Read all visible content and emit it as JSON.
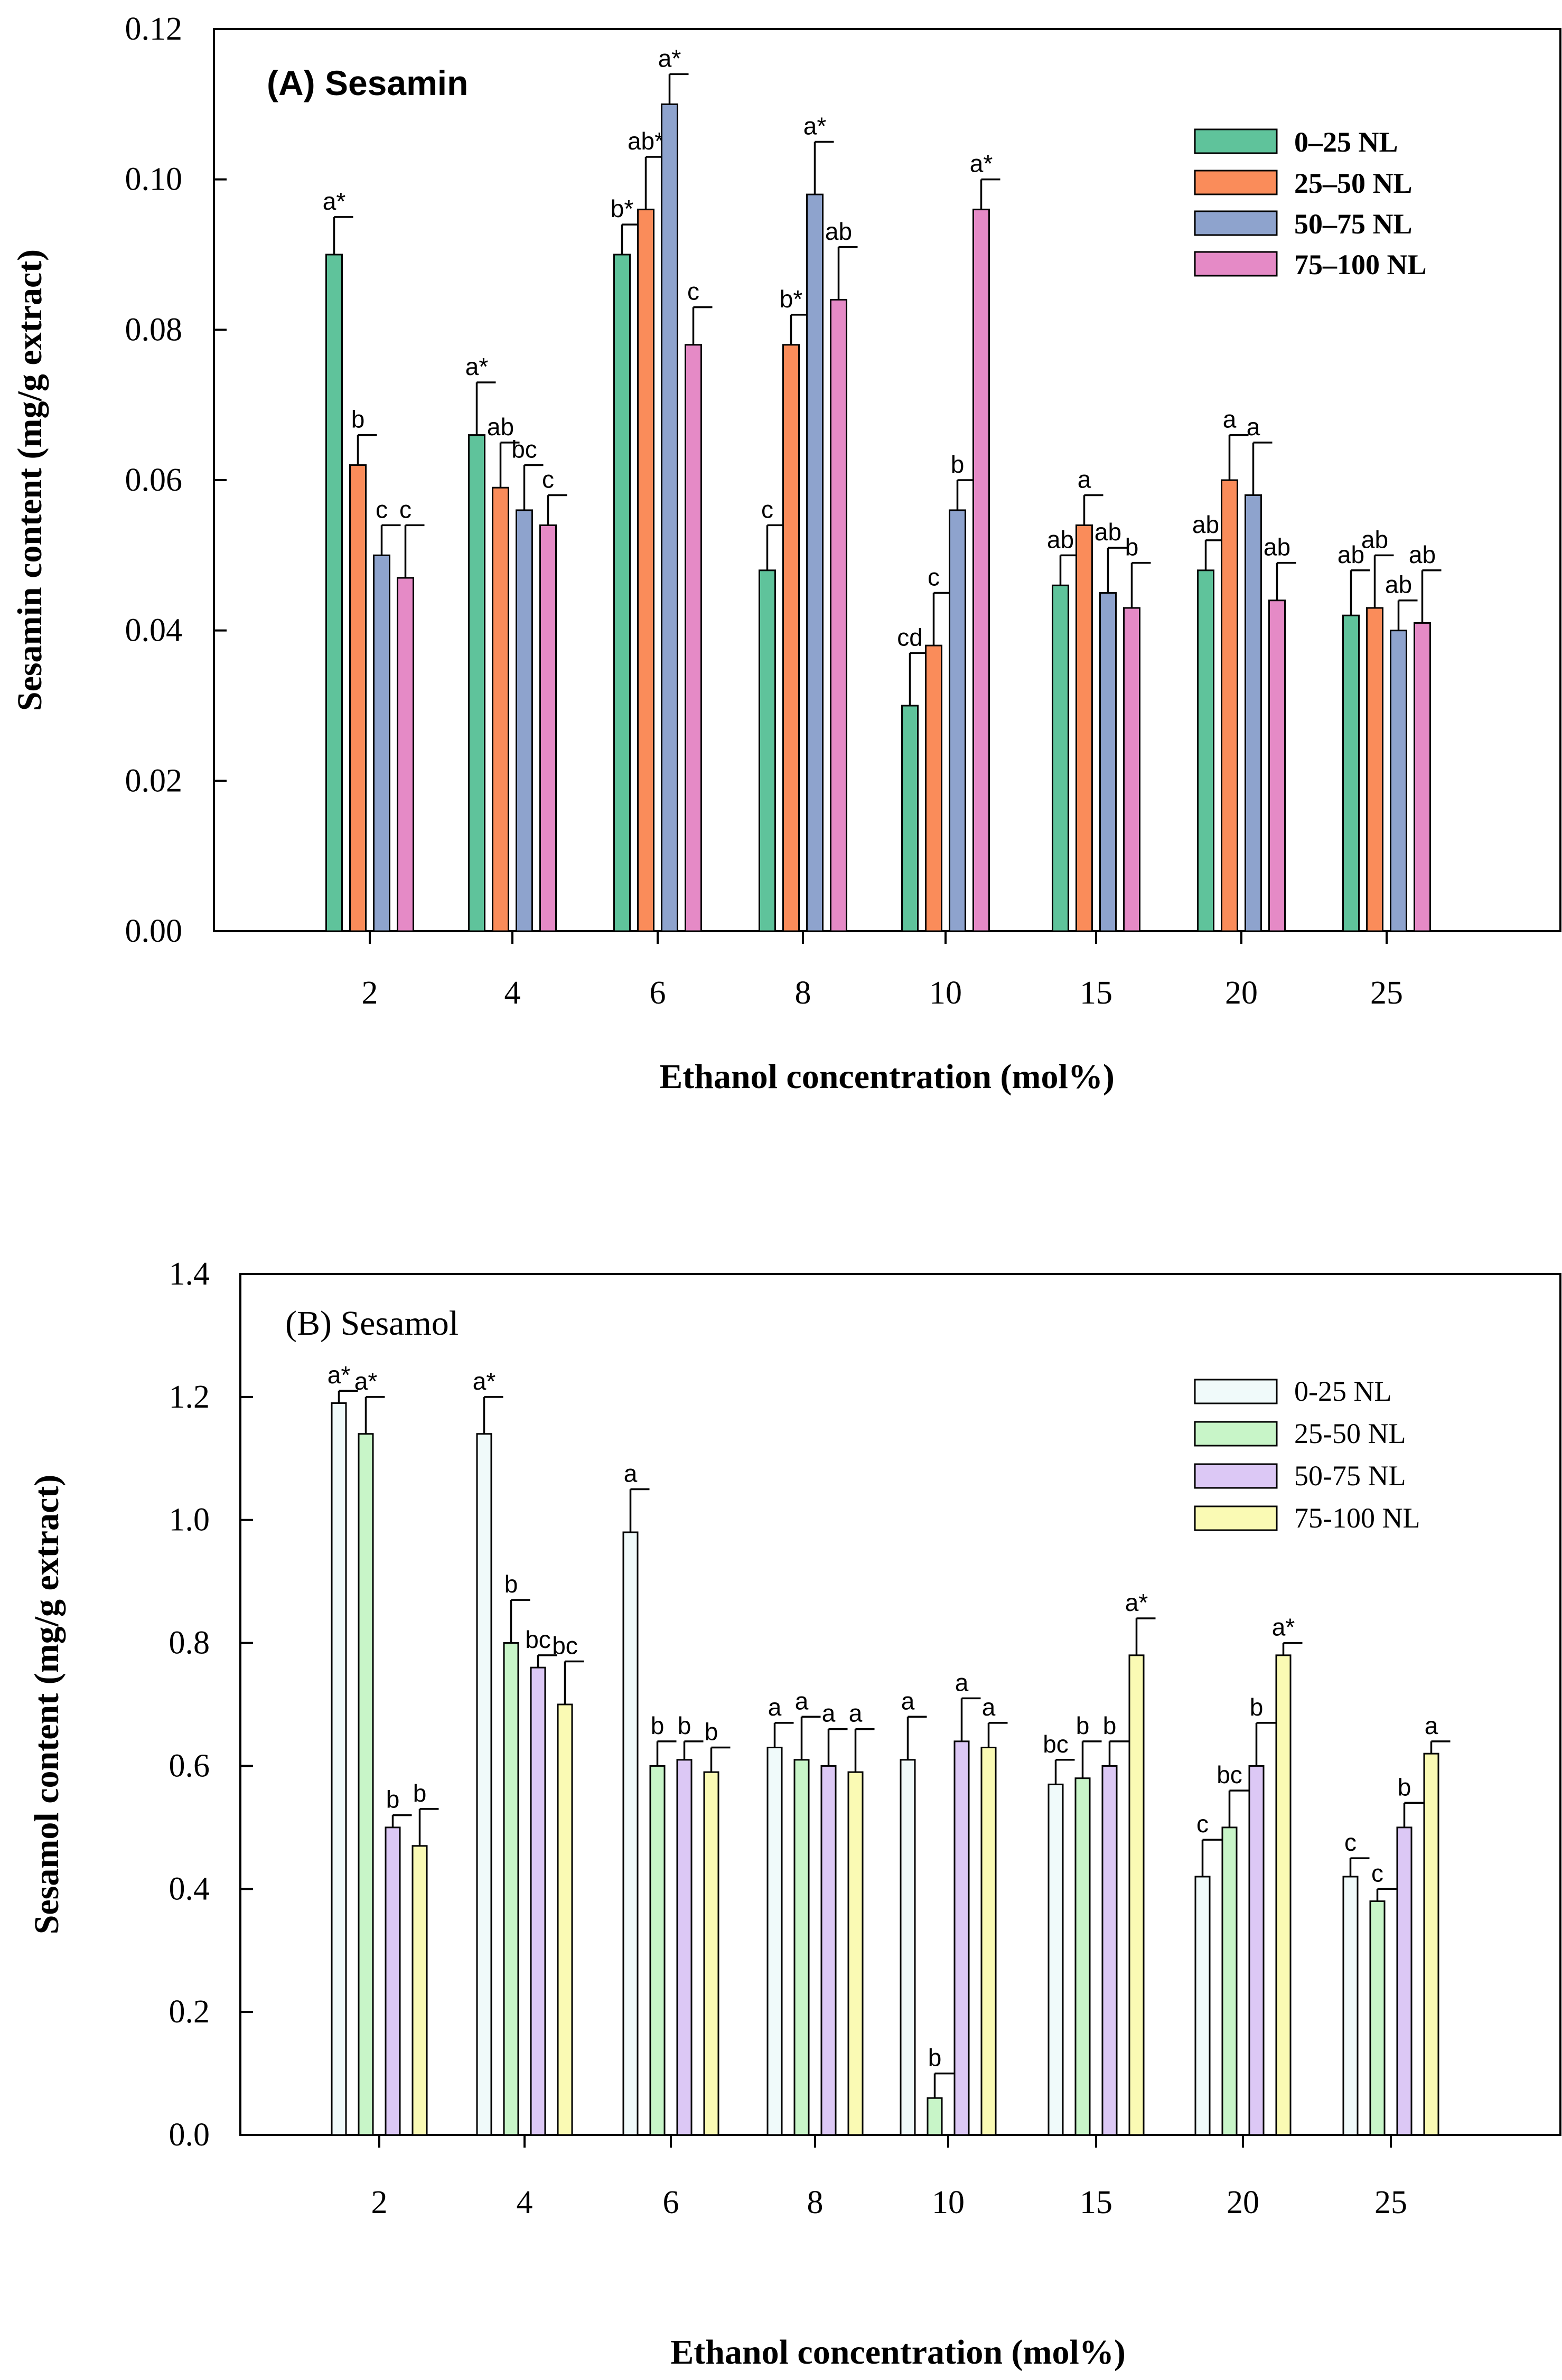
{
  "chart_data": [
    {
      "type": "bar",
      "title": "(A) Sesamin",
      "xlabel": "Ethanol concentration (mol%)",
      "ylabel": "Sesamin content (mg/g extract)",
      "ylim": [
        0,
        0.12
      ],
      "yticks": [
        "0.00",
        "0.02",
        "0.04",
        "0.06",
        "0.08",
        "0.10",
        "0.12"
      ],
      "categories": [
        "2",
        "4",
        "6",
        "8",
        "10",
        "15",
        "20",
        "25"
      ],
      "legend_position": "top-right",
      "series": [
        {
          "name": "0–25 NL",
          "color": "#5fc39b",
          "values": [
            0.09,
            0.066,
            0.09,
            0.048,
            0.03,
            0.046,
            0.048,
            0.042
          ],
          "errors": [
            0.005,
            0.007,
            0.004,
            0.006,
            0.007,
            0.004,
            0.004,
            0.006
          ],
          "labels": [
            "a*",
            "a*",
            "b*",
            "c",
            "cd",
            "ab",
            "ab",
            "ab"
          ]
        },
        {
          "name": "25–50 NL",
          "color": "#fa8c5a",
          "values": [
            0.062,
            0.059,
            0.096,
            0.078,
            0.038,
            0.054,
            0.06,
            0.043
          ],
          "errors": [
            0.004,
            0.006,
            0.007,
            0.004,
            0.007,
            0.004,
            0.006,
            0.007
          ],
          "labels": [
            "b",
            "ab",
            "ab*",
            "b*",
            "c",
            "a",
            "a",
            "ab"
          ]
        },
        {
          "name": "50–75 NL",
          "color": "#8ea3cd",
          "values": [
            0.05,
            0.056,
            0.11,
            0.098,
            0.056,
            0.045,
            0.058,
            0.04
          ],
          "errors": [
            0.004,
            0.006,
            0.004,
            0.007,
            0.004,
            0.006,
            0.007,
            0.004
          ],
          "labels": [
            "c",
            "bc",
            "a*",
            "a*",
            "b",
            "ab",
            "a",
            "ab"
          ]
        },
        {
          "name": "75–100 NL",
          "color": "#e58ac6",
          "values": [
            0.047,
            0.054,
            0.078,
            0.084,
            0.096,
            0.043,
            0.044,
            0.041
          ],
          "errors": [
            0.007,
            0.004,
            0.005,
            0.007,
            0.004,
            0.006,
            0.005,
            0.007
          ],
          "labels": [
            "c",
            "c",
            "c",
            "ab",
            "a*",
            "b",
            "ab",
            "ab"
          ]
        }
      ]
    },
    {
      "type": "bar",
      "title": "(B) Sesamol",
      "xlabel": "Ethanol concentration (mol%)",
      "ylabel": "Sesamol content (mg/g extract)",
      "ylim": [
        0,
        1.4
      ],
      "yticks": [
        "0.0",
        "0.2",
        "0.4",
        "0.6",
        "0.8",
        "1.0",
        "1.2",
        "1.4"
      ],
      "categories": [
        "2",
        "4",
        "6",
        "8",
        "10",
        "15",
        "20",
        "25"
      ],
      "legend_position": "top-right",
      "series": [
        {
          "name": "0-25 NL",
          "color": "#f0fafa",
          "values": [
            1.19,
            1.14,
            0.98,
            0.63,
            0.61,
            0.57,
            0.42,
            0.42
          ],
          "errors": [
            0.02,
            0.06,
            0.07,
            0.04,
            0.07,
            0.04,
            0.06,
            0.03
          ],
          "labels": [
            "a*",
            "a*",
            "a",
            "a",
            "a",
            "bc",
            "c",
            "c"
          ]
        },
        {
          "name": "25-50 NL",
          "color": "#c8f5c8",
          "values": [
            1.14,
            0.8,
            0.6,
            0.61,
            0.06,
            0.58,
            0.5,
            0.38
          ],
          "errors": [
            0.06,
            0.07,
            0.04,
            0.07,
            0.04,
            0.06,
            0.06,
            0.02
          ],
          "labels": [
            "a*",
            "b",
            "b",
            "a",
            "b",
            "b",
            "bc",
            "c"
          ]
        },
        {
          "name": "50-75 NL",
          "color": "#dcc8f5",
          "values": [
            0.5,
            0.76,
            0.61,
            0.6,
            0.64,
            0.6,
            0.6,
            0.5
          ],
          "errors": [
            0.02,
            0.02,
            0.03,
            0.06,
            0.07,
            0.04,
            0.07,
            0.04
          ],
          "labels": [
            "b",
            "bc",
            "b",
            "a",
            "a",
            "b",
            "b",
            "b"
          ]
        },
        {
          "name": "75-100 NL",
          "color": "#fafab4",
          "values": [
            0.47,
            0.7,
            0.59,
            0.59,
            0.63,
            0.78,
            0.78,
            0.62
          ],
          "errors": [
            0.06,
            0.07,
            0.04,
            0.07,
            0.04,
            0.06,
            0.02,
            0.02
          ],
          "labels": [
            "b",
            "bc",
            "b",
            "a",
            "a",
            "a*",
            "a*",
            "a"
          ]
        }
      ]
    }
  ]
}
